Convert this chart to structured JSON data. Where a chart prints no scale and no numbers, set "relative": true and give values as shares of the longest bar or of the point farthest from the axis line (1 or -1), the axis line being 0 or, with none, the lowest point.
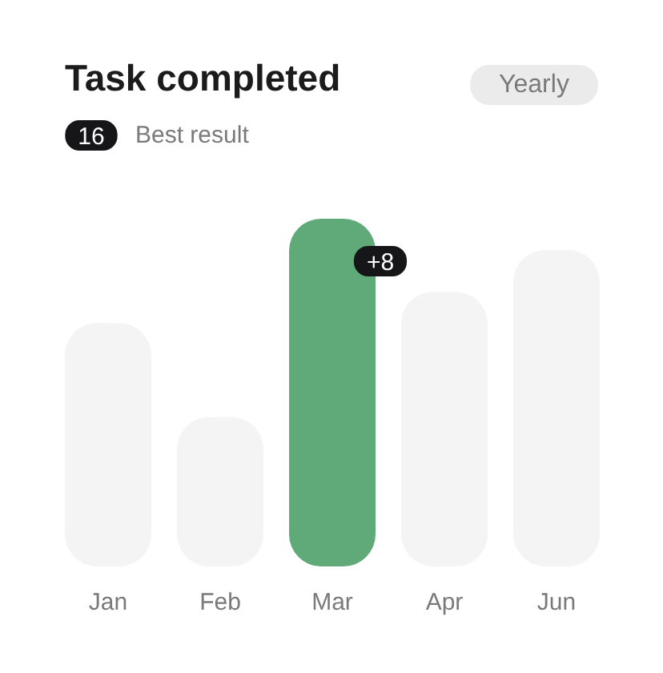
{
  "chart_data": {
    "type": "bar",
    "title": "Task completed",
    "subtitle": "Best result",
    "categories": [
      "Jan",
      "Feb",
      "Mar",
      "Apr",
      "Jun"
    ],
    "values": [
      0.7,
      0.43,
      1,
      0.79,
      0.91
    ],
    "colors": [
      "#f4f4f4",
      "#f4f4f4",
      "#5faa78",
      "#f4f4f4",
      "#f4f4f4"
    ],
    "relative": true,
    "annotations": [
      "+8",
      "16",
      "Yearly"
    ]
  }
}
